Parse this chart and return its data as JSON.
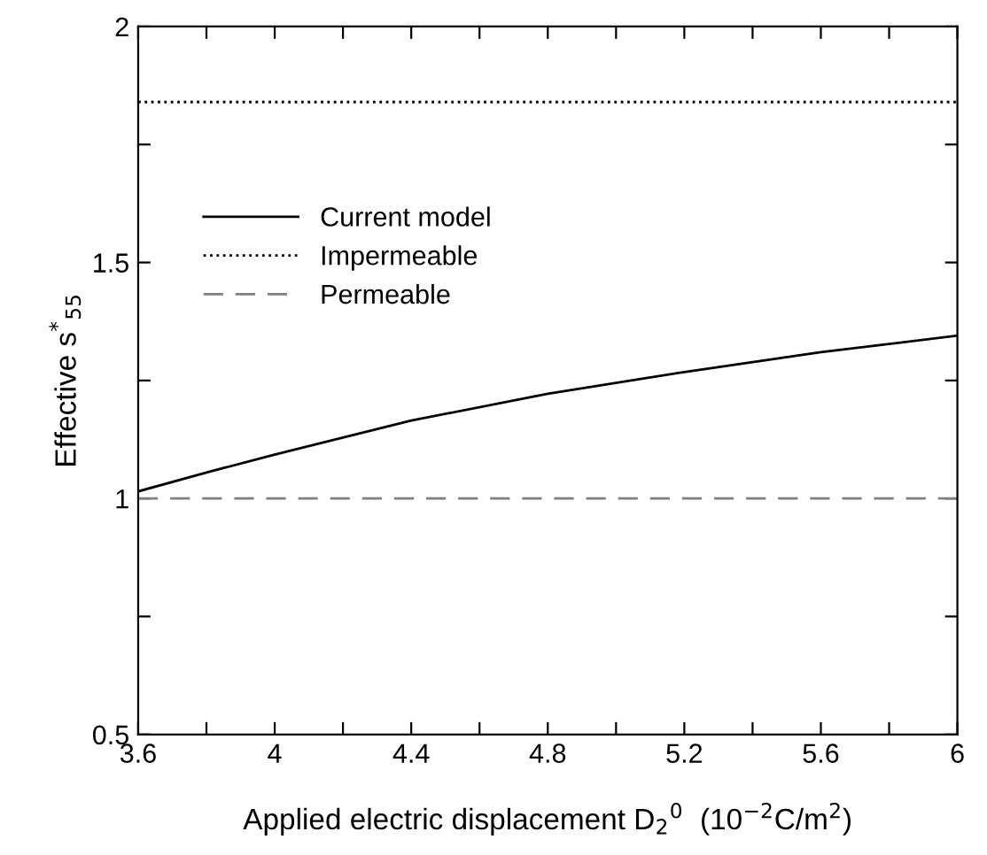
{
  "chart_data": {
    "type": "line",
    "xlabel": "Applied electric displacement D$_{2}$$^{0}$  (10$^{−2}$C/m$^{2}$)",
    "ylabel": "Effective s$^{*}$$_{55}$",
    "xlim": [
      3.6,
      6
    ],
    "xticks": [
      3.6,
      {
        "value": 3.8,
        "label": null
      },
      4,
      {
        "value": 4.2,
        "label": null
      },
      4.4,
      {
        "value": 4.6,
        "label": null
      },
      4.8,
      {
        "value": 5.0,
        "label": null
      },
      5.2,
      {
        "value": 5.4,
        "label": null
      },
      5.6,
      {
        "value": 5.8,
        "label": null
      },
      6
    ],
    "ylim": [
      0.5,
      2
    ],
    "yticks": [
      0.5,
      {
        "value": 0.75,
        "label": null
      },
      1,
      {
        "value": 1.25,
        "label": null
      },
      1.5,
      {
        "value": 1.75,
        "label": null
      },
      2
    ],
    "grid": false,
    "legend": "upper left",
    "series": [
      {
        "name": "Current model",
        "color": "#000000",
        "line_style": "solid",
        "x": [
          3.6,
          3.8,
          4.0,
          4.4,
          4.8,
          5.2,
          5.6,
          6.0
        ],
        "values": [
          1.015,
          1.055,
          1.093,
          1.165,
          1.222,
          1.268,
          1.31,
          1.345
        ]
      },
      {
        "name": "Impermeable",
        "color": "#000000",
        "line_style": "dotted",
        "x": [
          3.6,
          6.0
        ],
        "values": [
          1.84,
          1.84
        ]
      },
      {
        "name": "Permeable",
        "color": "#808080",
        "line_style": "dashed",
        "x": [
          3.6,
          6.0
        ],
        "values": [
          1.0,
          1.0
        ]
      }
    ]
  }
}
